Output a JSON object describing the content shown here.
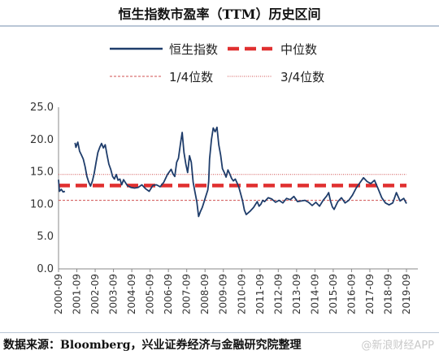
{
  "title": "恒生指数市盈率（TTM）历史区间",
  "source": "数据来源：Bloomberg，兴业证券经济与金融研究院整理",
  "watermark": "@新浪财经APP",
  "chart_data": {
    "type": "line",
    "title": "恒生指数市盈率（TTM）历史区间",
    "ylim": [
      0,
      25
    ],
    "yticks": [
      "0.0",
      "5.0",
      "10.0",
      "15.0",
      "20.0",
      "25.0"
    ],
    "x_ticks": [
      "2000-09",
      "2001-09",
      "2002-09",
      "2003-09",
      "2004-09",
      "2005-09",
      "2006-09",
      "2007-09",
      "2008-09",
      "2009-09",
      "2010-09",
      "2011-09",
      "2012-09",
      "2013-09",
      "2014-09",
      "2015-09",
      "2016-09",
      "2017-09",
      "2018-09",
      "2019-09"
    ],
    "grid": false,
    "legend": [
      "恒生指数",
      "中位数",
      "1/4位数",
      "3/4位数"
    ],
    "colors": {
      "pe": "#1f3d6b",
      "median": "#e03030",
      "quartile": "#d05050"
    },
    "series": [
      {
        "name": "恒生指数",
        "x": [
          2000.75,
          2000.8,
          2000.9,
          2001.0,
          2001.1,
          2001.2,
          2001.3,
          2001.4,
          2001.5,
          2001.6,
          2001.65,
          2001.7,
          2001.8,
          2001.9,
          2002.0,
          2002.1,
          2002.2,
          2002.3,
          2002.4,
          2002.5,
          2002.6,
          2002.7,
          2002.8,
          2002.9,
          2003.0,
          2003.1,
          2003.2,
          2003.3,
          2003.4,
          2003.5,
          2003.6,
          2003.7,
          2003.8,
          2003.9,
          2004.0,
          2004.1,
          2004.2,
          2004.3,
          2004.5,
          2004.7,
          2004.9,
          2005.1,
          2005.3,
          2005.5,
          2005.7,
          2005.9,
          2006.1,
          2006.3,
          2006.5,
          2006.7,
          2006.9,
          2007.0,
          2007.1,
          2007.2,
          2007.3,
          2007.4,
          2007.5,
          2007.6,
          2007.7,
          2007.8,
          2007.9,
          2008.0,
          2008.1,
          2008.2,
          2008.3,
          2008.4,
          2008.5,
          2008.6,
          2008.7,
          2008.8,
          2008.9,
          2008.95,
          2009.0,
          2009.1,
          2009.2,
          2009.3,
          2009.4,
          2009.5,
          2009.6,
          2009.7,
          2009.8,
          2009.9,
          2010.0,
          2010.1,
          2010.2,
          2010.3,
          2010.4,
          2010.5,
          2010.6,
          2010.7,
          2010.8,
          2010.9,
          2011.0,
          2011.2,
          2011.4,
          2011.6,
          2011.7,
          2011.8,
          2011.9,
          2012.0,
          2012.2,
          2012.4,
          2012.6,
          2012.8,
          2013.0,
          2013.2,
          2013.4,
          2013.6,
          2013.8,
          2014.0,
          2014.2,
          2014.4,
          2014.6,
          2014.8,
          2015.0,
          2015.2,
          2015.4,
          2015.5,
          2015.6,
          2015.7,
          2015.8,
          2016.0,
          2016.2,
          2016.4,
          2016.6,
          2016.8,
          2017.0,
          2017.2,
          2017.4,
          2017.6,
          2017.8,
          2018.0,
          2018.2,
          2018.4,
          2018.6,
          2018.8,
          2019.0,
          2019.2,
          2019.4,
          2019.6,
          2019.75
        ],
        "values": [
          13.8,
          12.0,
          12.3,
          11.9,
          12.0,
          null,
          null,
          null,
          null,
          null,
          19.5,
          18.8,
          19.6,
          18.2,
          17.6,
          17.0,
          15.8,
          14.3,
          13.4,
          12.8,
          13.6,
          14.8,
          16.5,
          18.0,
          18.8,
          19.4,
          18.7,
          19.2,
          17.6,
          16.2,
          15.4,
          14.3,
          13.9,
          14.6,
          13.7,
          13.9,
          13.0,
          13.8,
          12.9,
          12.6,
          12.5,
          12.6,
          13.0,
          12.4,
          12.0,
          12.9,
          13.0,
          12.7,
          13.4,
          14.6,
          15.4,
          14.7,
          14.3,
          16.5,
          17.1,
          19.2,
          21.1,
          18.0,
          16.2,
          14.9,
          17.5,
          16.5,
          13.4,
          11.9,
          10.4,
          8.1,
          8.9,
          9.5,
          10.4,
          11.3,
          12.2,
          13.5,
          17.0,
          20.0,
          21.8,
          21.2,
          21.9,
          19.2,
          17.6,
          15.5,
          14.9,
          14.2,
          15.3,
          14.7,
          14.0,
          13.6,
          13.9,
          13.3,
          12.6,
          11.6,
          10.5,
          9.1,
          8.4,
          8.9,
          9.5,
          10.4,
          9.7,
          10.0,
          10.6,
          10.4,
          11.0,
          10.8,
          10.3,
          10.6,
          10.2,
          10.9,
          10.7,
          11.2,
          10.4,
          10.5,
          10.6,
          10.3,
          9.8,
          10.3,
          9.7,
          10.6,
          11.3,
          11.8,
          10.5,
          9.6,
          9.2,
          10.4,
          11.0,
          10.2,
          10.6,
          11.4,
          12.5,
          13.3,
          14.1,
          13.5,
          13.2,
          13.7,
          12.4,
          11.0,
          10.2,
          9.9,
          10.2,
          11.8,
          10.5,
          10.9,
          10.1
        ]
      },
      {
        "name": "中位数",
        "values": [
          12.9
        ]
      },
      {
        "name": "1/4位数",
        "values": [
          10.6
        ]
      },
      {
        "name": "3/4位数",
        "values": [
          14.6
        ]
      }
    ]
  }
}
